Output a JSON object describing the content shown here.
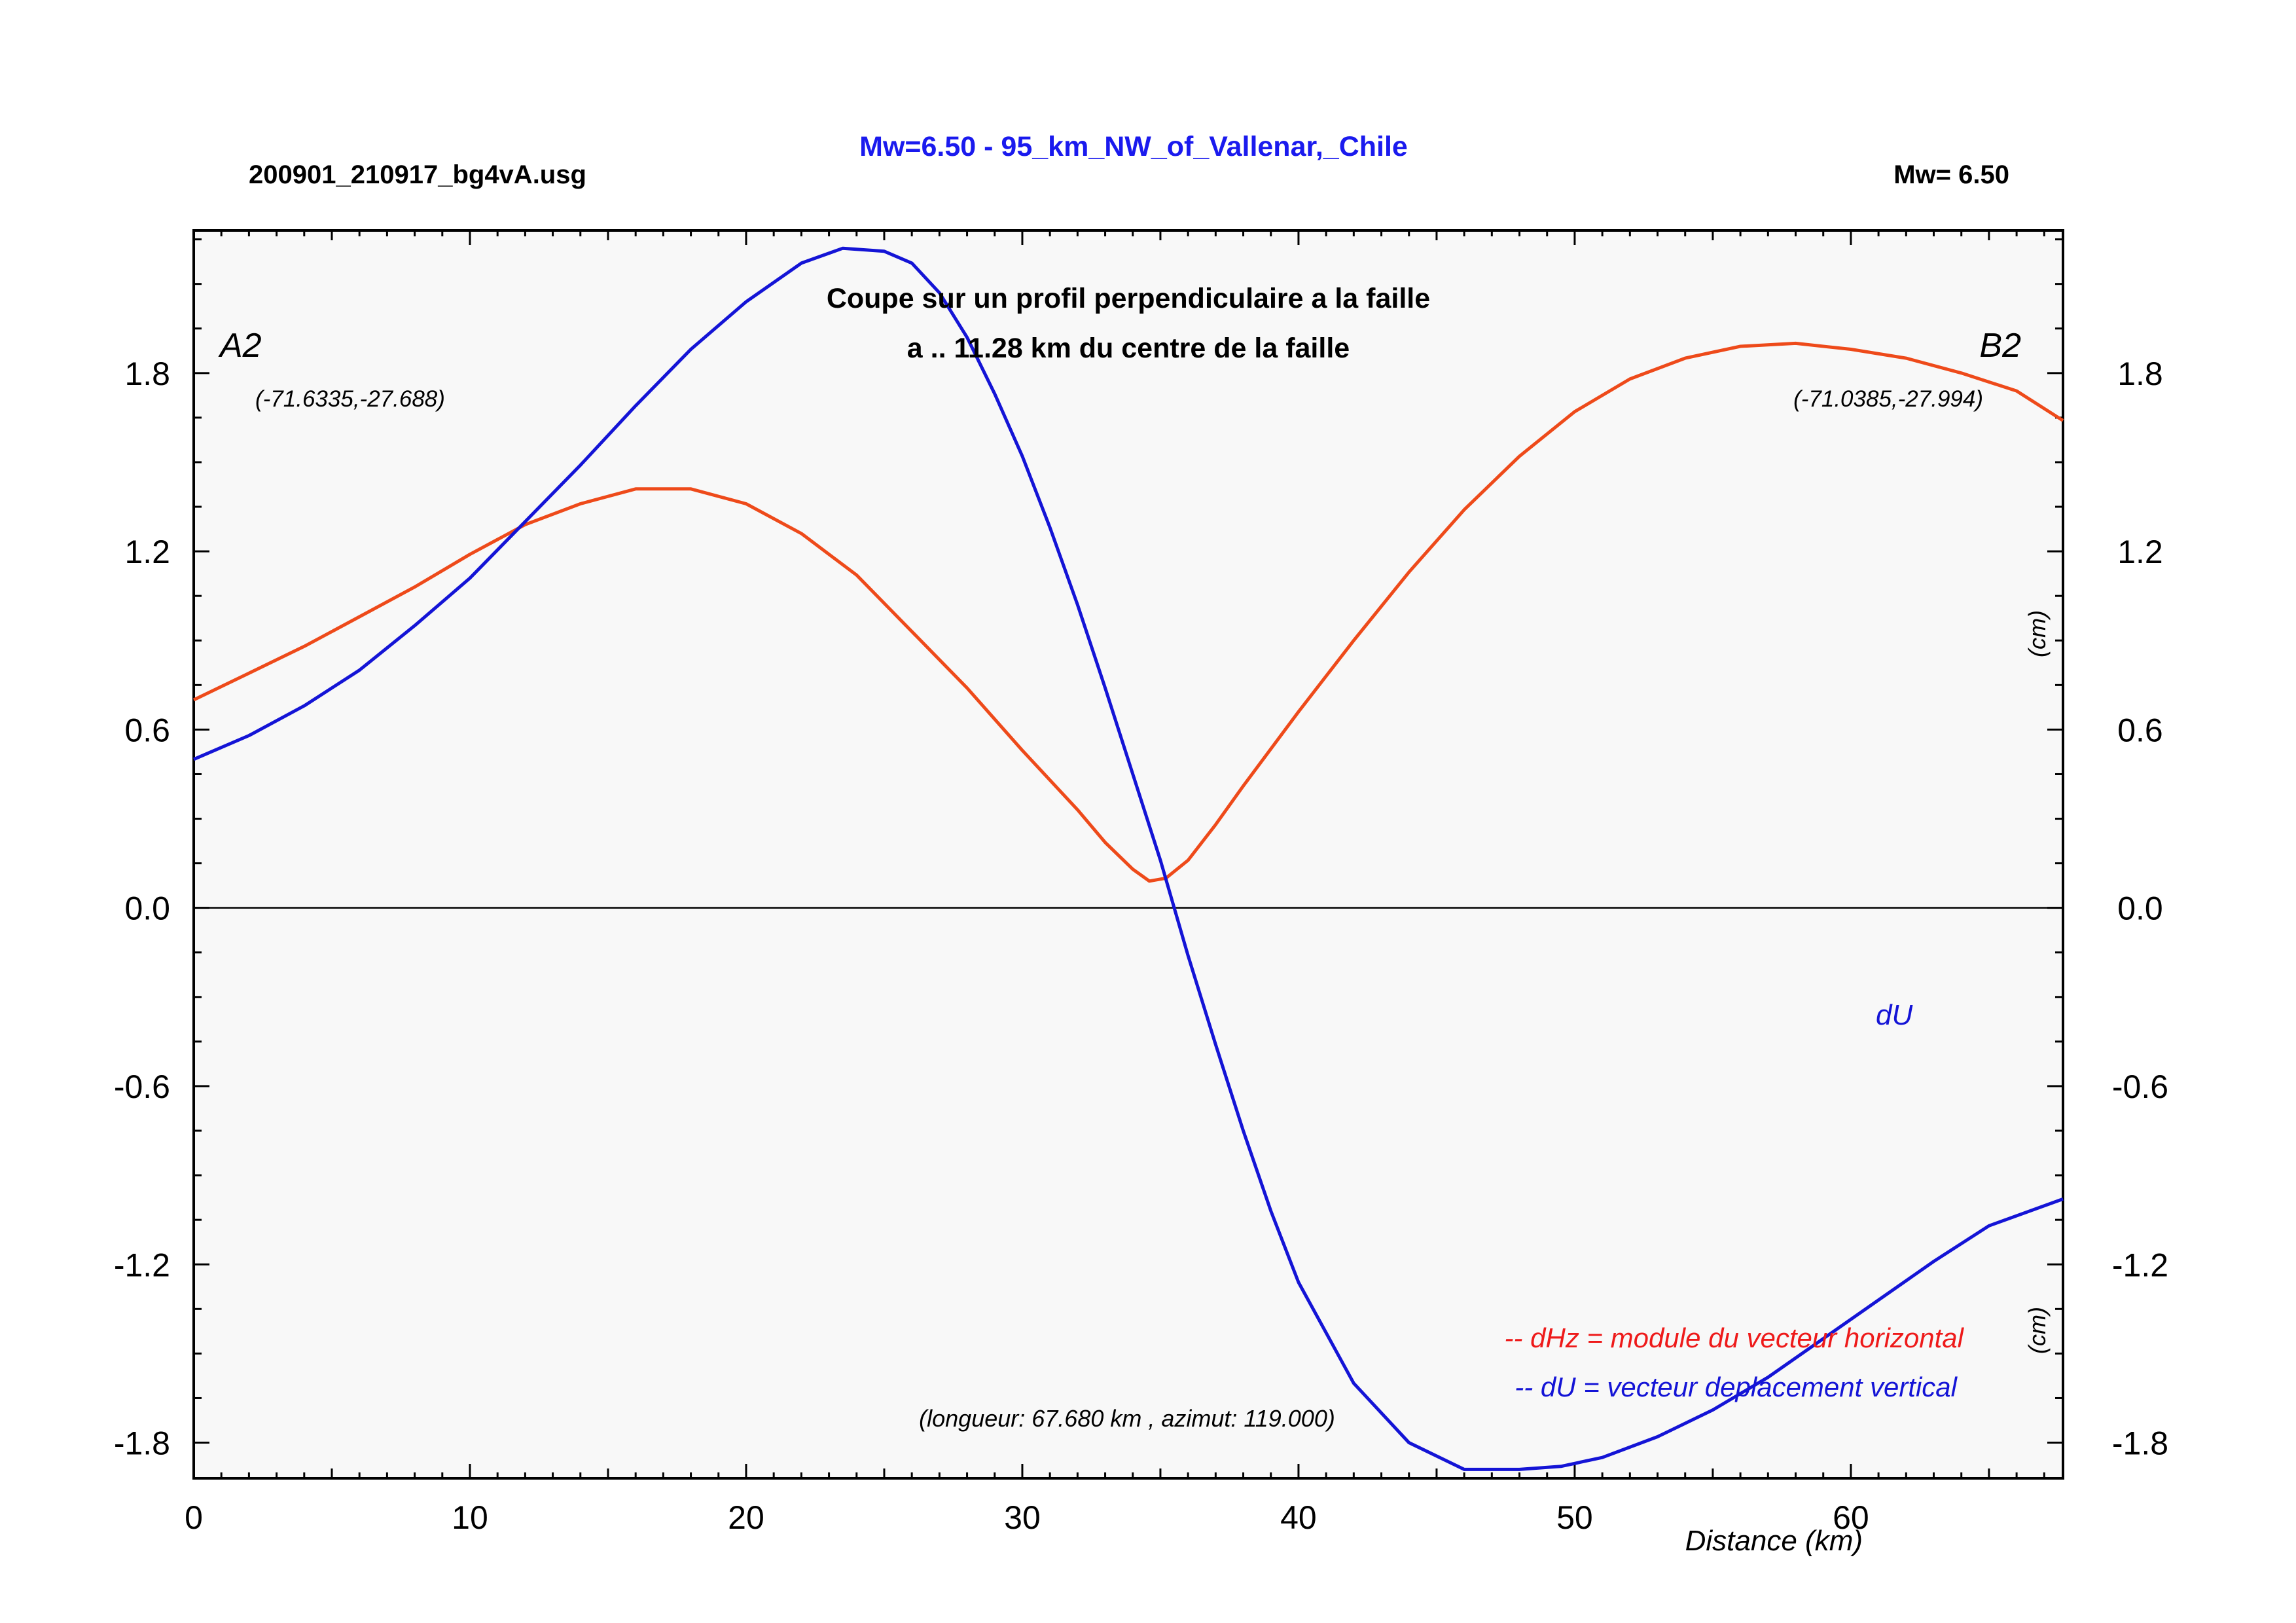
{
  "header": {
    "filename": "200901_210917_bg4vA.usg",
    "title": "Mw=6.50 - 95_km_NW_of_Vallenar,_Chile",
    "magnitude": "Mw= 6.50"
  },
  "colors": {
    "title": "#1a1aee",
    "dHz_line": "#ee4a1a",
    "dU_line": "#1414d6",
    "legend_dHz": "#ee1a1a",
    "legend_dU": "#1414d6",
    "plot_bg": "#f8f8f8",
    "zero_line": "#000000"
  },
  "annotations": {
    "subtitle_line1": "Coupe sur un profil perpendiculaire a la faille",
    "subtitle_line2": "a .. 11.28 km du centre de la faille",
    "point_a_label": "A2",
    "point_a_coords": "(-71.6335,-27.688)",
    "point_b_label": "B2",
    "point_b_coords": "(-71.0385,-27.994)",
    "unit_upper": "(cm)",
    "unit_lower": "(cm)",
    "du_label": "dU",
    "profile_info": "(longueur: 67.680 km , azimut: 119.000)",
    "legend_dHz": "-- dHz = module du vecteur horizontal",
    "legend_dU": "-- dU =  vecteur deplacement vertical"
  },
  "chart_data": {
    "type": "line",
    "xlabel": "Distance (km)",
    "ylabel": "",
    "xlim": [
      0,
      67.68
    ],
    "ylim": [
      -1.92,
      2.28
    ],
    "x_ticks": [
      0,
      10,
      20,
      30,
      40,
      50,
      60
    ],
    "y_ticks": [
      -1.8,
      -1.2,
      -0.6,
      0.0,
      0.6,
      1.2,
      1.8
    ],
    "y_tick_labels": [
      "-1.8",
      "-1.2",
      "-0.6",
      "0.0",
      "0.6",
      "1.2",
      "1.8"
    ],
    "grid": false,
    "legend_position": "bottom-right",
    "series": [
      {
        "name": "dHz",
        "color_key": "dHz_line",
        "x": [
          0,
          2,
          4,
          6,
          8,
          10,
          12,
          14,
          16,
          18,
          20,
          22,
          24,
          26,
          28,
          30,
          32,
          33,
          34,
          34.6,
          35.2,
          36,
          37,
          38,
          40,
          42,
          44,
          46,
          48,
          50,
          52,
          54,
          56,
          58,
          60,
          62,
          64,
          66,
          67.68
        ],
        "values": [
          0.7,
          0.79,
          0.88,
          0.98,
          1.08,
          1.19,
          1.29,
          1.36,
          1.41,
          1.41,
          1.36,
          1.26,
          1.12,
          0.93,
          0.74,
          0.53,
          0.33,
          0.22,
          0.13,
          0.09,
          0.1,
          0.16,
          0.28,
          0.41,
          0.66,
          0.9,
          1.13,
          1.34,
          1.52,
          1.67,
          1.78,
          1.85,
          1.89,
          1.9,
          1.88,
          1.85,
          1.8,
          1.74,
          1.64
        ]
      },
      {
        "name": "dU",
        "color_key": "dU_line",
        "x": [
          0,
          2,
          4,
          6,
          8,
          10,
          12,
          14,
          16,
          18,
          20,
          22,
          23.5,
          25,
          26,
          27,
          28,
          29,
          30,
          31,
          32,
          33,
          34,
          35,
          36,
          37,
          38,
          39,
          40,
          42,
          44,
          46,
          48,
          49.5,
          51,
          53,
          55,
          57,
          59,
          61,
          63,
          65,
          67.68
        ],
        "values": [
          0.5,
          0.58,
          0.68,
          0.8,
          0.95,
          1.11,
          1.3,
          1.49,
          1.69,
          1.88,
          2.04,
          2.17,
          2.22,
          2.21,
          2.17,
          2.07,
          1.92,
          1.73,
          1.52,
          1.28,
          1.02,
          0.74,
          0.45,
          0.16,
          -0.16,
          -0.46,
          -0.75,
          -1.02,
          -1.26,
          -1.6,
          -1.8,
          -1.89,
          -1.89,
          -1.88,
          -1.85,
          -1.78,
          -1.69,
          -1.58,
          -1.45,
          -1.32,
          -1.19,
          -1.07,
          -0.98
        ]
      }
    ]
  }
}
